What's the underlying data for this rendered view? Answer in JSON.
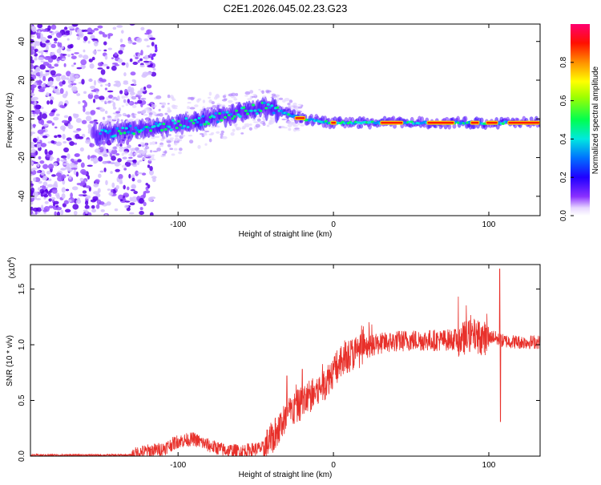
{
  "page_title": "C2E1.2026.045.02.23.G23",
  "chart_data": [
    {
      "type": "heatmap",
      "name": "spectrogram",
      "title": "C2E1.2026.045.02.23.G23",
      "xlabel": "Height of straight line (km)",
      "ylabel": "Frequency (Hz)",
      "xlim": [
        -195,
        133
      ],
      "ylim": [
        -50,
        49
      ],
      "xticks": [
        -100,
        0,
        100
      ],
      "xtick_labels": [
        "-100",
        "0",
        "100"
      ],
      "yticks": [
        -40,
        -20,
        0,
        20,
        40
      ],
      "ytick_labels": [
        "-40",
        "-20",
        "0",
        "20",
        "40"
      ],
      "colorbar": {
        "label": "Normalized spectral amplitude",
        "range": [
          0,
          1
        ],
        "ticks": [
          0.0,
          0.2,
          0.4,
          0.6,
          0.8
        ],
        "tick_labels": [
          "0.0",
          "0.2",
          "0.4",
          "0.6",
          "0.8"
        ],
        "colors": [
          "#ffffff",
          "#6a00ff",
          "#0000ff",
          "#00e0ff",
          "#00ff40",
          "#ffff00",
          "#ff8000",
          "#ff0000",
          "#ff0060"
        ]
      },
      "ridge": {
        "description_points_x": [
          -150,
          -100,
          -60,
          -45,
          -35,
          -20,
          0,
          50,
          100,
          133
        ],
        "description_points_y": [
          -8,
          -3,
          3,
          6,
          4,
          0,
          -2,
          -2,
          -2,
          -2
        ]
      }
    },
    {
      "type": "line",
      "name": "snr",
      "xlabel": "Height of straight line (km)",
      "ylabel": "SNR (10 * v/v)",
      "scale_label": "(x10",
      "scale_exp": "4",
      "scale_close": ")",
      "xlim": [
        -195,
        133
      ],
      "ylim": [
        0,
        1.72
      ],
      "xticks": [
        -100,
        0,
        100
      ],
      "xtick_labels": [
        "-100",
        "0",
        "100"
      ],
      "yticks": [
        0.0,
        0.5,
        1.0,
        1.5
      ],
      "ytick_labels": [
        "0.0",
        "0.5",
        "1.0",
        "1.5"
      ],
      "color": "#e8302a",
      "envelope": {
        "x": [
          -195,
          -130,
          -125,
          -110,
          -100,
          -90,
          -80,
          -70,
          -60,
          -45,
          -38,
          -30,
          -20,
          -10,
          -5,
          0,
          10,
          20,
          25,
          30,
          40,
          50,
          60,
          70,
          80,
          85,
          90,
          95,
          100,
          103,
          106,
          110,
          120,
          133
        ],
        "y": [
          0.01,
          0.01,
          0.04,
          0.07,
          0.14,
          0.16,
          0.1,
          0.06,
          0.05,
          0.08,
          0.2,
          0.38,
          0.5,
          0.6,
          0.68,
          0.78,
          0.92,
          0.98,
          1.0,
          1.02,
          1.04,
          1.05,
          1.05,
          1.05,
          1.06,
          1.08,
          1.1,
          1.08,
          1.07,
          1.08,
          1.05,
          1.04,
          1.03,
          1.03
        ]
      },
      "spikes": [
        {
          "x": 107,
          "y": 1.68
        },
        {
          "x": 107.5,
          "y": 0.31
        },
        {
          "x": -30,
          "y": 0.72
        },
        {
          "x": -20,
          "y": 0.78
        },
        {
          "x": 8,
          "y": 1.02
        }
      ]
    }
  ]
}
